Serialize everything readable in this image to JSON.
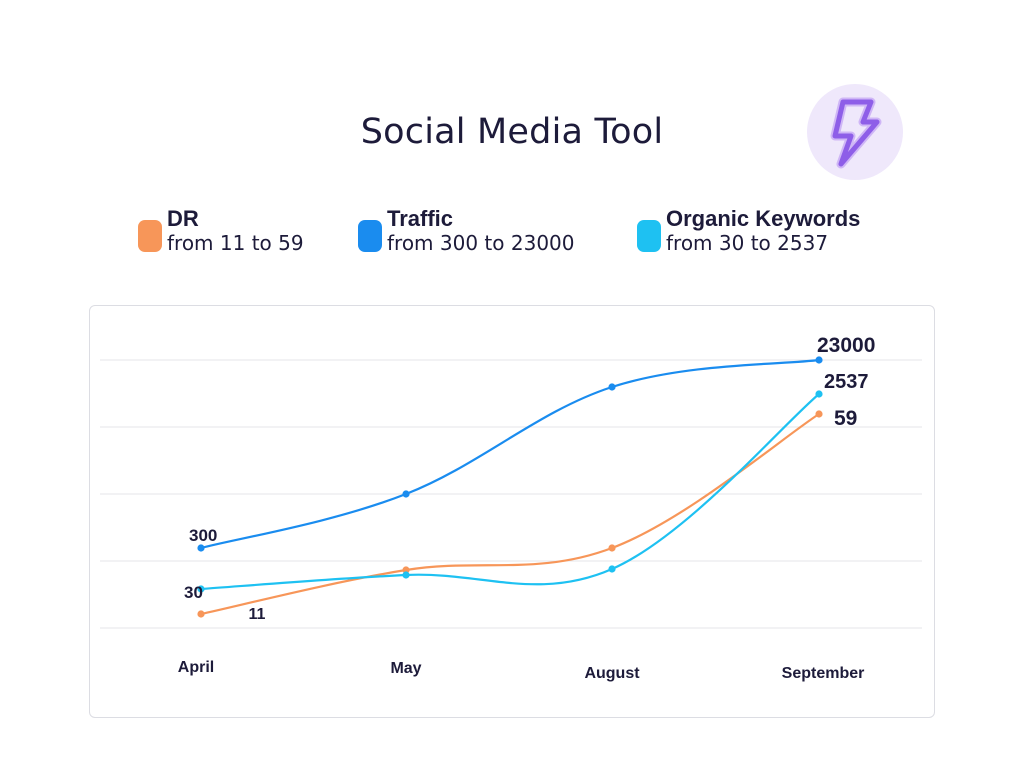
{
  "chart_data": {
    "type": "line",
    "title": "Social Media Tool",
    "categories": [
      "April",
      "May",
      "August",
      "September"
    ],
    "series": [
      {
        "name": "DR",
        "range_text": "from 11 to 59",
        "color": "#f79659",
        "values": [
          11,
          18,
          24,
          59
        ],
        "first_label": "11",
        "last_label": "59"
      },
      {
        "name": "Traffic",
        "range_text": "from 300 to 23000",
        "color": "#1a8cef",
        "values": [
          300,
          8900,
          18400,
          23000
        ],
        "first_label": "300",
        "last_label": "23000"
      },
      {
        "name": "Organic Keywords",
        "range_text": "from 30 to 2537",
        "color": "#1ec1f2",
        "values": [
          30,
          33,
          31,
          2537
        ],
        "first_label": "30",
        "last_label": "2537"
      }
    ],
    "grid": true,
    "legend_position": "top"
  },
  "logo_icon": "lightning-bolt-icon",
  "accent_color": "#9f6cf0"
}
